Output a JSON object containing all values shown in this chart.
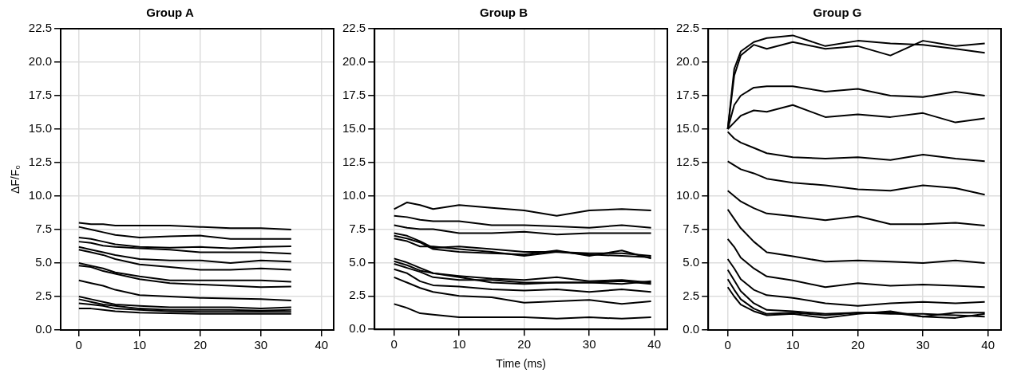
{
  "chart_data": [
    {
      "type": "line",
      "title": "Group A",
      "ylabel": "ΔF/F₀",
      "color": "#000000",
      "grid": true,
      "xlim": [
        -3,
        42
      ],
      "xticks": [
        0,
        10,
        20,
        30,
        40
      ],
      "ylim": [
        0,
        22.5
      ],
      "yticks": [
        {
          "value": 0,
          "label": "0.0"
        },
        2.5,
        {
          "value": 5,
          "label": "5.0"
        },
        7.5,
        {
          "value": 10,
          "label": "10.0"
        },
        12.5,
        {
          "value": 15,
          "label": "15.0"
        },
        17.5,
        {
          "value": 20,
          "label": "20.0"
        },
        22.5
      ],
      "x": [
        0,
        2,
        4,
        6,
        10,
        15,
        20,
        25,
        30,
        35
      ],
      "series": [
        {
          "values": [
            8.0,
            7.9,
            7.9,
            7.8,
            7.8,
            7.8,
            7.7,
            7.6,
            7.6,
            7.5
          ]
        },
        {
          "values": [
            7.7,
            7.5,
            7.3,
            7.1,
            6.9,
            7.0,
            7.05,
            6.8,
            6.8,
            6.8
          ]
        },
        {
          "values": [
            6.9,
            6.8,
            6.6,
            6.4,
            6.2,
            6.15,
            6.2,
            6.1,
            6.2,
            6.25
          ]
        },
        {
          "values": [
            6.6,
            6.5,
            6.3,
            6.2,
            6.1,
            6.0,
            5.8,
            5.8,
            5.8,
            5.7
          ]
        },
        {
          "values": [
            6.2,
            6.0,
            5.8,
            5.6,
            5.3,
            5.2,
            5.2,
            5.0,
            5.2,
            5.1
          ]
        },
        {
          "values": [
            6.0,
            5.8,
            5.6,
            5.3,
            4.9,
            4.7,
            4.5,
            4.5,
            4.6,
            4.5
          ]
        },
        {
          "values": [
            5.0,
            4.8,
            4.6,
            4.3,
            4.0,
            3.7,
            3.7,
            3.7,
            3.7,
            3.6
          ]
        },
        {
          "values": [
            4.8,
            4.7,
            4.4,
            4.2,
            3.8,
            3.5,
            3.4,
            3.3,
            3.2,
            3.25
          ]
        },
        {
          "values": [
            3.7,
            3.5,
            3.3,
            3.0,
            2.6,
            2.5,
            2.4,
            2.35,
            2.3,
            2.2
          ]
        },
        {
          "values": [
            2.5,
            2.3,
            2.1,
            1.9,
            1.8,
            1.7,
            1.7,
            1.7,
            1.6,
            1.7
          ]
        },
        {
          "values": [
            2.3,
            2.1,
            1.9,
            1.8,
            1.6,
            1.5,
            1.5,
            1.5,
            1.45,
            1.5
          ]
        },
        {
          "values": [
            2.0,
            1.9,
            1.8,
            1.6,
            1.5,
            1.4,
            1.35,
            1.35,
            1.35,
            1.35
          ]
        },
        {
          "values": [
            1.6,
            1.6,
            1.5,
            1.4,
            1.3,
            1.25,
            1.2,
            1.2,
            1.2,
            1.2
          ]
        }
      ]
    },
    {
      "type": "line",
      "title": "Group B",
      "xlabel": "Time (ms)",
      "color": "#000000",
      "grid": true,
      "xlim": [
        -3,
        42
      ],
      "xticks": [
        0,
        10,
        20,
        30,
        40
      ],
      "ylim": [
        0,
        22.5
      ],
      "yticks": [
        {
          "value": 0,
          "label": "0.0"
        },
        2.5,
        {
          "value": 5,
          "label": "5.0"
        },
        7.5,
        {
          "value": 10,
          "label": "10.0"
        },
        12.5,
        {
          "value": 15,
          "label": "15.0"
        },
        17.5,
        {
          "value": 20,
          "label": "20.0"
        },
        22.5
      ],
      "x": [
        0,
        2,
        4,
        6,
        10,
        15,
        20,
        25,
        30,
        35,
        39.5
      ],
      "series": [
        {
          "values": [
            9.0,
            9.5,
            9.3,
            9.0,
            9.3,
            9.1,
            8.9,
            8.5,
            8.9,
            9.0,
            8.9
          ]
        },
        {
          "values": [
            8.5,
            8.4,
            8.2,
            8.1,
            8.1,
            7.8,
            7.8,
            7.7,
            7.6,
            7.8,
            7.6
          ]
        },
        {
          "values": [
            7.8,
            7.6,
            7.5,
            7.5,
            7.2,
            7.2,
            7.3,
            7.1,
            7.2,
            7.2,
            7.2
          ]
        },
        {
          "values": [
            7.2,
            7.0,
            6.6,
            6.1,
            6.2,
            6.0,
            5.8,
            5.8,
            5.7,
            5.7,
            5.5
          ]
        },
        {
          "values": [
            7.0,
            6.8,
            6.5,
            6.0,
            5.8,
            5.7,
            5.6,
            5.9,
            5.5,
            5.9,
            5.3
          ]
        },
        {
          "values": [
            6.8,
            6.6,
            6.2,
            6.2,
            6.0,
            5.8,
            5.5,
            5.8,
            5.6,
            5.5,
            5.4
          ]
        },
        {
          "values": [
            5.3,
            5.0,
            4.6,
            4.2,
            4.0,
            3.8,
            3.7,
            3.9,
            3.6,
            3.7,
            3.5
          ]
        },
        {
          "values": [
            5.1,
            4.8,
            4.4,
            4.2,
            3.9,
            3.5,
            3.4,
            3.5,
            3.5,
            3.4,
            3.6
          ]
        },
        {
          "values": [
            4.9,
            4.6,
            4.3,
            3.9,
            3.7,
            3.7,
            3.5,
            3.5,
            3.5,
            3.6,
            3.4
          ]
        },
        {
          "values": [
            4.5,
            4.2,
            3.6,
            3.3,
            3.2,
            3.0,
            2.9,
            3.0,
            2.8,
            3.0,
            2.8
          ]
        },
        {
          "values": [
            3.9,
            3.5,
            3.1,
            2.8,
            2.5,
            2.4,
            2.0,
            2.1,
            2.2,
            1.9,
            2.1
          ]
        },
        {
          "values": [
            1.9,
            1.6,
            1.2,
            1.1,
            0.9,
            0.9,
            0.9,
            0.8,
            0.9,
            0.8,
            0.9
          ]
        }
      ]
    },
    {
      "type": "line",
      "title": "Group G",
      "color": "#000000",
      "grid": true,
      "xlim": [
        -3,
        42
      ],
      "xticks": [
        0,
        10,
        20,
        30,
        40
      ],
      "ylim": [
        0,
        22.5
      ],
      "yticks": [
        {
          "value": 0,
          "label": "0.0"
        },
        2.5,
        {
          "value": 5,
          "label": "5.0"
        },
        7.5,
        {
          "value": 10,
          "label": "10.0"
        },
        12.5,
        {
          "value": 15,
          "label": "15.0"
        },
        17.5,
        {
          "value": 20,
          "label": "20.0"
        },
        22.5
      ],
      "x": [
        0,
        1,
        2,
        4,
        6,
        10,
        15,
        20,
        25,
        30,
        35,
        39.5
      ],
      "series": [
        {
          "values": [
            15,
            19.5,
            20.8,
            21.5,
            21.8,
            22.0,
            21.2,
            21.6,
            21.4,
            21.3,
            21.0,
            20.7
          ]
        },
        {
          "values": [
            15,
            19,
            20.5,
            21.3,
            21.0,
            21.5,
            21.0,
            21.2,
            20.5,
            21.6,
            21.2,
            21.4
          ]
        },
        {
          "values": [
            15,
            16.8,
            17.5,
            18.1,
            18.2,
            18.2,
            17.8,
            18.0,
            17.5,
            17.4,
            17.8,
            17.5
          ]
        },
        {
          "values": [
            15,
            15.5,
            16.0,
            16.4,
            16.3,
            16.8,
            15.9,
            16.1,
            15.9,
            16.2,
            15.5,
            15.8
          ]
        },
        {
          "values": [
            14.8,
            14.3,
            14.0,
            13.6,
            13.2,
            12.9,
            12.8,
            12.9,
            12.7,
            13.1,
            12.8,
            12.6
          ]
        },
        {
          "values": [
            12.6,
            12.3,
            12.0,
            11.7,
            11.3,
            11.0,
            10.8,
            10.5,
            10.4,
            10.8,
            10.6,
            10.1
          ]
        },
        {
          "values": [
            10.4,
            10.0,
            9.6,
            9.1,
            8.7,
            8.5,
            8.2,
            8.5,
            7.9,
            7.9,
            8.0,
            7.8
          ]
        },
        {
          "values": [
            9.0,
            8.3,
            7.6,
            6.6,
            5.8,
            5.5,
            5.1,
            5.2,
            5.1,
            5.0,
            5.2,
            5.0
          ]
        },
        {
          "values": [
            6.8,
            6.2,
            5.4,
            4.6,
            4.0,
            3.7,
            3.2,
            3.5,
            3.3,
            3.4,
            3.3,
            3.2
          ]
        },
        {
          "values": [
            5.3,
            4.6,
            3.8,
            3.0,
            2.6,
            2.4,
            2.0,
            1.8,
            2.0,
            2.1,
            2.0,
            2.1
          ]
        },
        {
          "values": [
            4.5,
            3.7,
            2.9,
            2.0,
            1.5,
            1.4,
            1.2,
            1.3,
            1.3,
            1.0,
            1.3,
            1.3
          ]
        },
        {
          "values": [
            3.8,
            3.0,
            2.3,
            1.6,
            1.2,
            1.3,
            1.1,
            1.3,
            1.2,
            1.2,
            1.1,
            1.0
          ]
        },
        {
          "values": [
            3.2,
            2.5,
            1.9,
            1.4,
            1.1,
            1.2,
            0.9,
            1.2,
            1.4,
            1.0,
            0.9,
            1.2
          ]
        }
      ]
    }
  ]
}
